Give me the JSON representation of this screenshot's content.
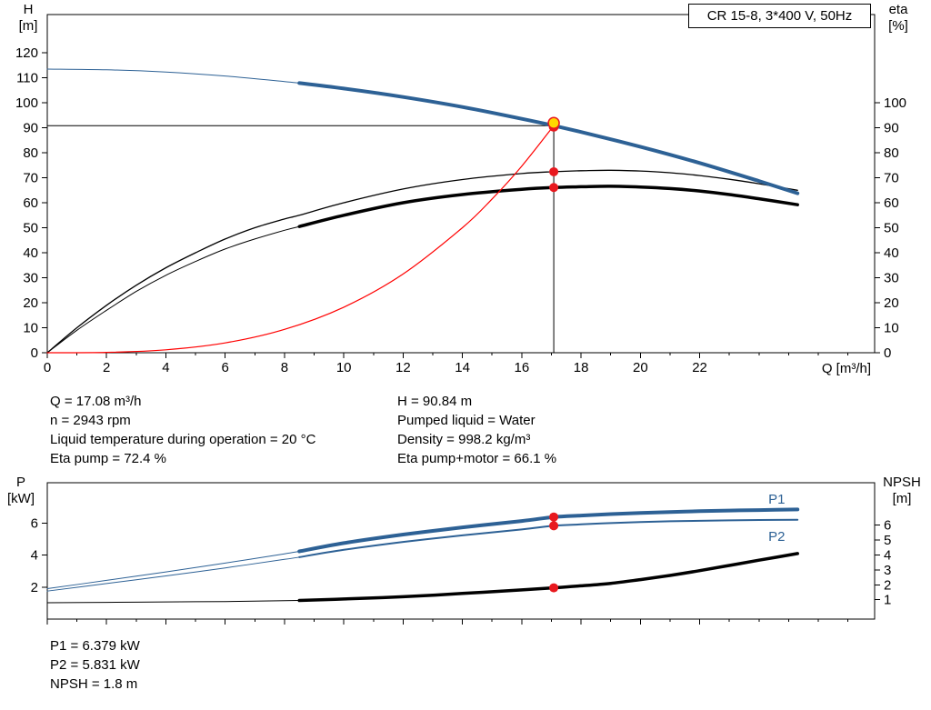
{
  "info_top": {
    "left": [
      "Q = 17.08 m³/h",
      "n = 2943 rpm",
      "Liquid temperature during operation = 20 °C",
      "Eta pump = 72.4 %"
    ],
    "right": [
      "H = 90.84 m",
      "Pumped liquid = Water",
      "Density = 998.2 kg/m³",
      "Eta pump+motor = 66.1 %"
    ]
  },
  "info_bottom": [
    "P1 = 6.379 kW",
    "P2 = 5.831 kW",
    "NPSH = 1.8 m"
  ],
  "chart_data": [
    {
      "type": "line",
      "name": "performance-chart",
      "title": "CR 15-8, 3*400 V, 50Hz",
      "x_axis": {
        "label": "Q [m³/h]",
        "min": 0,
        "max": 27.9,
        "major_ticks": [
          0,
          2,
          4,
          6,
          8,
          10,
          12,
          14,
          16,
          18,
          20,
          22
        ],
        "minor_step": 1
      },
      "left_axis": {
        "label": "H",
        "unit": "[m]",
        "min": 0,
        "max": 135.3,
        "ticks": [
          0,
          10,
          20,
          30,
          40,
          50,
          60,
          70,
          80,
          90,
          100,
          110,
          120
        ]
      },
      "right_axis": {
        "label": "eta",
        "unit": "[%]",
        "min": 0,
        "max": 135.3,
        "ticks": [
          0,
          10,
          20,
          30,
          40,
          50,
          60,
          70,
          80,
          90,
          100
        ]
      },
      "marker_color": "#e8191f",
      "series": [
        {
          "name": "eta-pump-curve",
          "axis": "right",
          "color": "#000000",
          "width": 1.3,
          "thin_until": null,
          "points": [
            [
              0,
              0
            ],
            [
              1,
              10
            ],
            [
              2,
              19
            ],
            [
              3,
              27
            ],
            [
              4,
              34
            ],
            [
              5,
              40
            ],
            [
              6,
              45.5
            ],
            [
              7,
              50
            ],
            [
              8,
              53.5
            ],
            [
              8.5,
              55
            ],
            [
              10,
              60
            ],
            [
              12,
              65.5
            ],
            [
              14,
              69.3
            ],
            [
              16,
              71.7
            ],
            [
              17.08,
              72.4
            ],
            [
              18,
              72.8
            ],
            [
              19,
              73
            ],
            [
              20,
              72.7
            ],
            [
              21,
              72
            ],
            [
              22,
              70.9
            ],
            [
              23,
              69.4
            ],
            [
              24,
              67.6
            ],
            [
              25.3,
              65
            ]
          ]
        },
        {
          "name": "eta-pump-motor-curve",
          "axis": "right",
          "color": "#000000",
          "width": 3.5,
          "thin_until": 8.5,
          "thin_width": 1,
          "points": [
            [
              0,
              0
            ],
            [
              1,
              9
            ],
            [
              2,
              17
            ],
            [
              3,
              24.5
            ],
            [
              4,
              31
            ],
            [
              5,
              36.5
            ],
            [
              6,
              41.5
            ],
            [
              7,
              45.5
            ],
            [
              8,
              49
            ],
            [
              8.5,
              50.5
            ],
            [
              10,
              55
            ],
            [
              12,
              60
            ],
            [
              14,
              63.3
            ],
            [
              16,
              65.4
            ],
            [
              17.08,
              66.1
            ],
            [
              18,
              66.4
            ],
            [
              19,
              66.6
            ],
            [
              20,
              66.3
            ],
            [
              21,
              65.7
            ],
            [
              22,
              64.7
            ],
            [
              23,
              63.3
            ],
            [
              24,
              61.6
            ],
            [
              25.3,
              59.2
            ]
          ]
        },
        {
          "name": "system-curve",
          "axis": "left",
          "color": "#ff0000",
          "width": 1.2,
          "thin_until": null,
          "points": [
            [
              0,
              0
            ],
            [
              2,
              0.15
            ],
            [
              4,
              1.17
            ],
            [
              6,
              3.94
            ],
            [
              8,
              9.33
            ],
            [
              10,
              18.23
            ],
            [
              12,
              31.5
            ],
            [
              14,
              50.02
            ],
            [
              15,
              61.52
            ],
            [
              16,
              74.66
            ],
            [
              17.08,
              90.84
            ]
          ]
        },
        {
          "name": "head-curve",
          "axis": "left",
          "color": "#2d6195",
          "width": 4,
          "thin_until": 8.5,
          "thin_width": 1,
          "points": [
            [
              0,
              113.5
            ],
            [
              2,
              113.2
            ],
            [
              4,
              112.3
            ],
            [
              6,
              110.7
            ],
            [
              8,
              108.5
            ],
            [
              8.5,
              107.9
            ],
            [
              10,
              105.7
            ],
            [
              12,
              102.3
            ],
            [
              14,
              98.3
            ],
            [
              16,
              93.6
            ],
            [
              17.08,
              90.84
            ],
            [
              18,
              88.3
            ],
            [
              20,
              82.4
            ],
            [
              22,
              75.9
            ],
            [
              24,
              68.7
            ],
            [
              25.3,
              63.8
            ]
          ]
        }
      ],
      "duty_point": {
        "q": 17.08,
        "value": 90.84,
        "axis": "left",
        "dot_color": "#e8191f",
        "ring_fill": "#ffd800",
        "ring_stroke": "#e8191f"
      },
      "markers": [
        {
          "name": "eta-pump-point",
          "q": 17.08,
          "value": 72.4,
          "axis": "right"
        },
        {
          "name": "eta-pump-motor-point",
          "q": 17.08,
          "value": 66.1,
          "axis": "right"
        }
      ]
    },
    {
      "type": "line",
      "name": "power-npsh-chart",
      "x_axis": {
        "label": "",
        "min": 0,
        "max": 27.9,
        "major_ticks": [
          0,
          2,
          4,
          6,
          8,
          10,
          12,
          14,
          16,
          18,
          20,
          22
        ],
        "minor_step": 1
      },
      "left_axis": {
        "label": "P",
        "unit": "[kW]",
        "min": 0,
        "max": 8.52,
        "ticks": [
          2,
          4,
          6
        ]
      },
      "right_axis": {
        "label": "NPSH",
        "unit": "[m]",
        "min": -0.3,
        "max": 8.85,
        "ticks": [
          1,
          2,
          3,
          4,
          5,
          6
        ]
      },
      "marker_color": "#e8191f",
      "series": [
        {
          "name": "p1-curve",
          "label": "P1",
          "label_side": "above",
          "axis": "left",
          "color": "#2d6195",
          "width": 4,
          "thin_until": 8.5,
          "thin_width": 1,
          "points": [
            [
              0,
              1.9
            ],
            [
              2,
              2.42
            ],
            [
              4,
              2.95
            ],
            [
              6,
              3.5
            ],
            [
              8,
              4.08
            ],
            [
              8.5,
              4.23
            ],
            [
              10,
              4.75
            ],
            [
              12,
              5.28
            ],
            [
              14,
              5.73
            ],
            [
              16,
              6.13
            ],
            [
              17.08,
              6.379
            ],
            [
              18,
              6.47
            ],
            [
              19,
              6.56
            ],
            [
              20,
              6.63
            ],
            [
              21,
              6.69
            ],
            [
              22,
              6.74
            ],
            [
              23,
              6.78
            ],
            [
              24,
              6.81
            ],
            [
              25.3,
              6.85
            ]
          ]
        },
        {
          "name": "p2-curve",
          "label": "P2",
          "label_side": "below",
          "axis": "left",
          "color": "#2d6195",
          "width": 2,
          "thin_until": 8.5,
          "thin_width": 1,
          "points": [
            [
              0,
              1.75
            ],
            [
              2,
              2.22
            ],
            [
              4,
              2.7
            ],
            [
              6,
              3.2
            ],
            [
              8,
              3.73
            ],
            [
              8.5,
              3.87
            ],
            [
              10,
              4.33
            ],
            [
              12,
              4.82
            ],
            [
              14,
              5.23
            ],
            [
              16,
              5.6
            ],
            [
              17.08,
              5.831
            ],
            [
              18,
              5.92
            ],
            [
              19,
              6.0
            ],
            [
              20,
              6.06
            ],
            [
              21,
              6.11
            ],
            [
              22,
              6.14
            ],
            [
              23,
              6.17
            ],
            [
              24,
              6.19
            ],
            [
              25.3,
              6.21
            ]
          ]
        },
        {
          "name": "npsh-curve",
          "axis": "right",
          "color": "#000000",
          "width": 3.5,
          "thin_until": 8.5,
          "thin_width": 1,
          "points": [
            [
              0,
              0.8
            ],
            [
              2,
              0.82
            ],
            [
              4,
              0.85
            ],
            [
              6,
              0.88
            ],
            [
              8,
              0.93
            ],
            [
              8.5,
              0.95
            ],
            [
              10,
              1.05
            ],
            [
              12,
              1.2
            ],
            [
              14,
              1.42
            ],
            [
              16,
              1.66
            ],
            [
              17.08,
              1.8
            ],
            [
              18,
              1.93
            ],
            [
              19,
              2.1
            ],
            [
              20,
              2.35
            ],
            [
              21,
              2.63
            ],
            [
              22,
              2.95
            ],
            [
              23,
              3.3
            ],
            [
              24,
              3.65
            ],
            [
              25.3,
              4.1
            ]
          ]
        }
      ],
      "markers": [
        {
          "name": "p1-point",
          "q": 17.08,
          "value": 6.379,
          "axis": "left"
        },
        {
          "name": "p2-point",
          "q": 17.08,
          "value": 5.831,
          "axis": "left"
        },
        {
          "name": "npsh-point",
          "q": 17.08,
          "value": 1.8,
          "axis": "right"
        }
      ]
    }
  ]
}
